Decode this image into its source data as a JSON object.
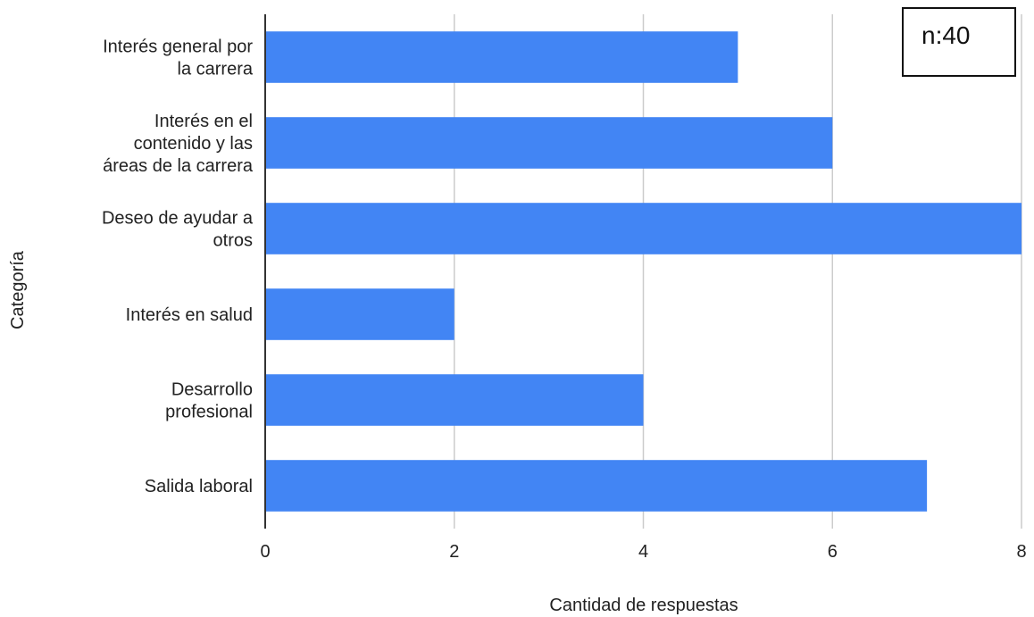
{
  "chart_data": {
    "type": "bar",
    "orientation": "horizontal",
    "categories": [
      [
        "Interés general por",
        "la carrera"
      ],
      [
        "Interés en el",
        "contenido y las",
        "áreas de la carrera"
      ],
      [
        "Deseo de ayudar a",
        "otros"
      ],
      [
        "Interés en salud"
      ],
      [
        "Desarrollo",
        "profesional"
      ],
      [
        "Salida laboral"
      ]
    ],
    "values": [
      5,
      6,
      8,
      2,
      4,
      7
    ],
    "xlabel": "Cantidad de respuestas",
    "ylabel": "Categoría",
    "xlim": [
      0,
      8
    ],
    "xticks": [
      0,
      2,
      4,
      6,
      8
    ],
    "grid": true,
    "bar_color": "#4285f4",
    "annotation": "n:40"
  }
}
